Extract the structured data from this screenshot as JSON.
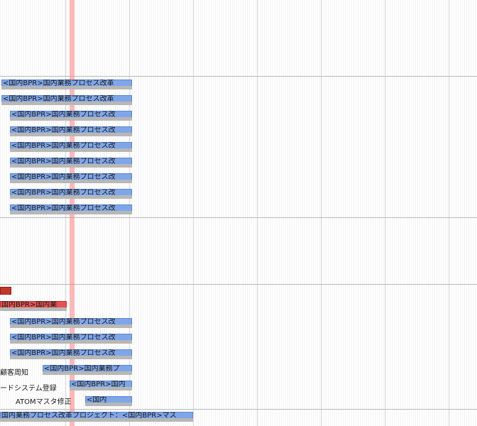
{
  "rows": [
    {
      "label": "<国内BPR>国内業務プロセス改革",
      "color": "blue"
    },
    {
      "label": "<国内BPR>国内業務プロセス改革",
      "color": "blue"
    },
    {
      "label": "<国内BPR>国内業務プロセス改",
      "color": "blue"
    },
    {
      "label": "<国内BPR>国内業務プロセス改",
      "color": "blue"
    },
    {
      "label": "<国内BPR>国内業務プロセス改",
      "color": "blue"
    },
    {
      "label": "<国内BPR>国内業務プロセス改",
      "color": "blue"
    },
    {
      "label": "<国内BPR>国内業務プロセス改",
      "color": "blue"
    },
    {
      "label": "<国内BPR>国内業務プロセス改",
      "color": "blue"
    },
    {
      "label": "<国内BPR>国内業務プロセス改",
      "color": "blue"
    },
    {
      "label": "",
      "color": "red-marker"
    },
    {
      "label": "国内BPR>国内業",
      "color": "red"
    },
    {
      "label": "<国内BPR>国内業務プロセス改",
      "color": "blue"
    },
    {
      "label": "<国内BPR>国内業務プロセス改",
      "color": "blue"
    },
    {
      "label": "<国内BPR>国内業務プロセス改",
      "color": "blue"
    },
    {
      "label": "<国内BPR>国内業務プ",
      "color": "blue"
    },
    {
      "label": "<国内BPR>国内",
      "color": "blue"
    },
    {
      "label": "<国内",
      "color": "blue"
    },
    {
      "label": "国内業務プロセス改革プロジェクト：<国内BPR>マス",
      "color": "blue"
    }
  ],
  "left_labels": [
    "顧客周知",
    "ードシステム登録",
    "ATOMマスタ修正"
  ],
  "colors": {
    "bar": "#7fa6e8",
    "bar_red": "#e65252",
    "today": "#ff8282"
  }
}
